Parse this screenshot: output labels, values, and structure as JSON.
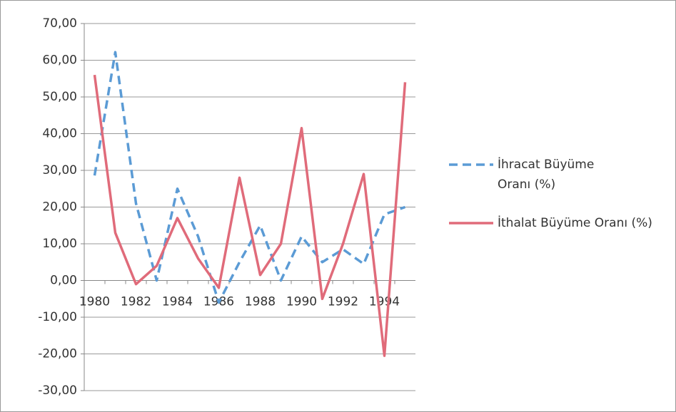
{
  "chart_data": {
    "type": "line",
    "categories": [
      "1980",
      null,
      "1982",
      null,
      "1984",
      null,
      "1986",
      null,
      "1988",
      null,
      "1990",
      null,
      "1992",
      null,
      "1994",
      null
    ],
    "series": [
      {
        "name": "İhracat Büyüme Oranı (%)",
        "color": "#5b9bd5",
        "dash": true,
        "values": [
          28.6,
          62.2,
          21,
          0,
          25,
          12,
          -6,
          5,
          15,
          0,
          12,
          5,
          8.5,
          4.5,
          18,
          20
        ]
      },
      {
        "name": "İthalat Büyüme Oranı (%)",
        "color": "#e06b7a",
        "dash": false,
        "values": [
          56,
          13,
          -1,
          4,
          17,
          6,
          -2,
          28,
          1.5,
          10,
          41.5,
          -5,
          10,
          29,
          -20.5,
          54
        ]
      }
    ],
    "ylim": [
      -30,
      70
    ],
    "yticks": [
      {
        "value": -30,
        "label": "-30,00"
      },
      {
        "value": -20,
        "label": "-20,00"
      },
      {
        "value": -10,
        "label": "-10,00"
      },
      {
        "value": 0,
        "label": "0,00"
      },
      {
        "value": 10,
        "label": "10,00"
      },
      {
        "value": 20,
        "label": "20,00"
      },
      {
        "value": 30,
        "label": "30,00"
      },
      {
        "value": 40,
        "label": "40,00"
      },
      {
        "value": 50,
        "label": "50,00"
      },
      {
        "value": 60,
        "label": "60,00"
      },
      {
        "value": 70,
        "label": "70,00"
      }
    ],
    "grid": true,
    "legend": "right"
  }
}
